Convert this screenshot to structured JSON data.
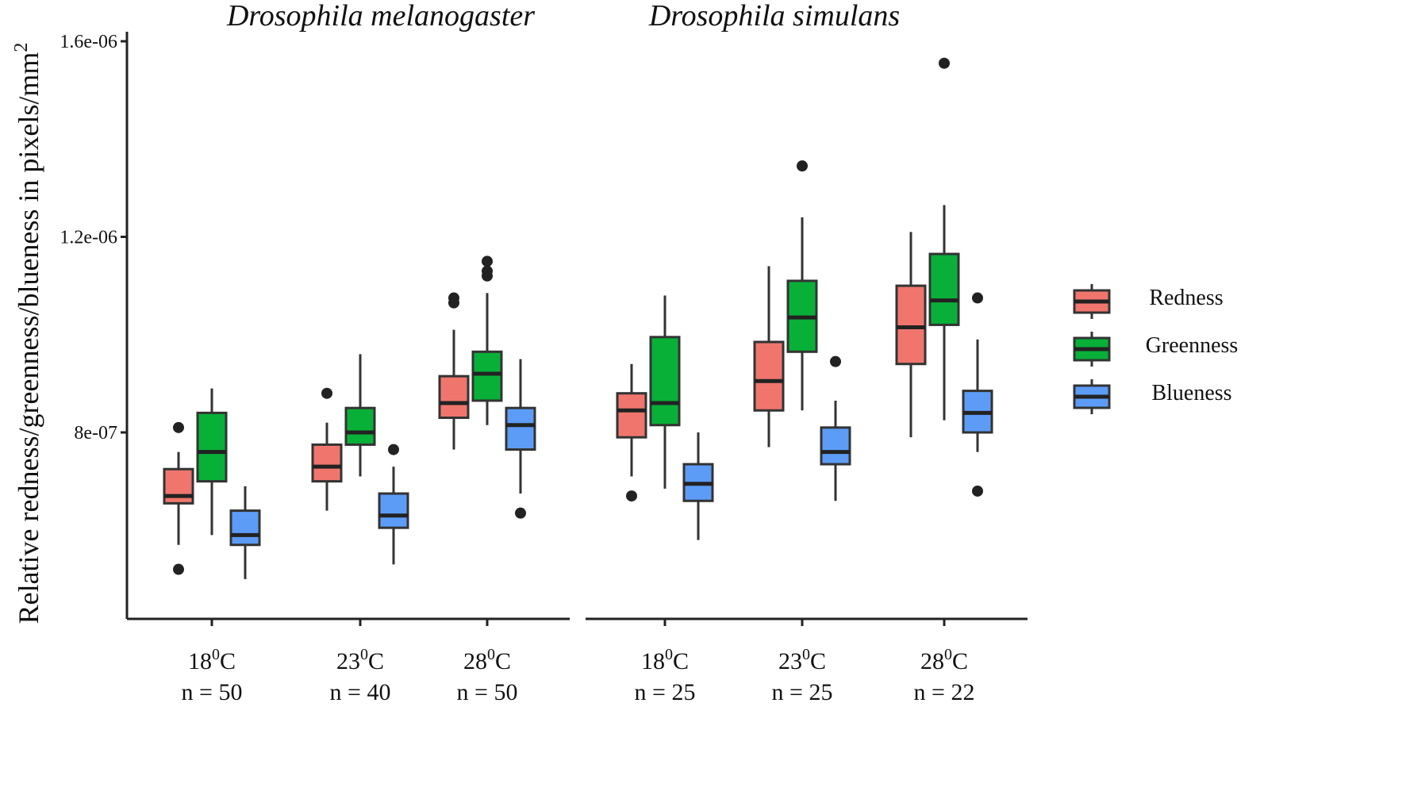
{
  "chart_data": {
    "type": "boxplot",
    "ylabel": "Relative redness/greenness/blueness in pixels/mm",
    "ylabel_superscript": "2",
    "ylim": [
      4e-07,
      1.6e-06
    ],
    "y_ticks": [
      {
        "value": 8e-07,
        "label": "8e-07"
      },
      {
        "value": 1.2e-06,
        "label": "1.2e-06"
      },
      {
        "value": 1.6e-06,
        "label": "1.6e-06"
      }
    ],
    "legend": [
      {
        "name": "Redness",
        "color": "#F0766D"
      },
      {
        "name": "Greenness",
        "color": "#08B038"
      },
      {
        "name": "Blueness",
        "color": "#5C9CF7"
      }
    ],
    "panels": [
      {
        "title": "Drosophila melanogaster",
        "groups": [
          {
            "temp": "18",
            "sup": "0",
            "unit": "C",
            "n_label": "n = 50",
            "boxes": [
              {
                "series": "Redness",
                "min": 5.7e-07,
                "q1": 6.55e-07,
                "median": 6.7e-07,
                "q3": 7.25e-07,
                "max": 7.6e-07,
                "outliers": [
                  8.1e-07,
                  5.2e-07
                ]
              },
              {
                "series": "Greenness",
                "min": 5.9e-07,
                "q1": 7e-07,
                "median": 7.6e-07,
                "q3": 8.4e-07,
                "max": 8.9e-07,
                "outliers": []
              },
              {
                "series": "Blueness",
                "min": 5e-07,
                "q1": 5.7e-07,
                "median": 5.9e-07,
                "q3": 6.4e-07,
                "max": 6.9e-07,
                "outliers": []
              }
            ]
          },
          {
            "temp": "23",
            "sup": "0",
            "unit": "C",
            "n_label": "n = 40",
            "boxes": [
              {
                "series": "Redness",
                "min": 6.4e-07,
                "q1": 7e-07,
                "median": 7.3e-07,
                "q3": 7.75e-07,
                "max": 8.2e-07,
                "outliers": [
                  8.8e-07
                ]
              },
              {
                "series": "Greenness",
                "min": 7.1e-07,
                "q1": 7.75e-07,
                "median": 8e-07,
                "q3": 8.5e-07,
                "max": 9.6e-07,
                "outliers": []
              },
              {
                "series": "Blueness",
                "min": 5.3e-07,
                "q1": 6.05e-07,
                "median": 6.3e-07,
                "q3": 6.75e-07,
                "max": 7.3e-07,
                "outliers": [
                  7.65e-07
                ]
              }
            ]
          },
          {
            "temp": "28",
            "sup": "0",
            "unit": "C",
            "n_label": "n = 50",
            "boxes": [
              {
                "series": "Redness",
                "min": 7.65e-07,
                "q1": 8.3e-07,
                "median": 8.6e-07,
                "q3": 9.15e-07,
                "max": 1.01e-06,
                "outliers": [
                  1.065e-06,
                  1.075e-06
                ]
              },
              {
                "series": "Greenness",
                "min": 8.15e-07,
                "q1": 8.65e-07,
                "median": 9.2e-07,
                "q3": 9.65e-07,
                "max": 1.085e-06,
                "outliers": [
                  1.12e-06,
                  1.13e-06,
                  1.15e-06
                ]
              },
              {
                "series": "Blueness",
                "min": 6.75e-07,
                "q1": 7.65e-07,
                "median": 8.15e-07,
                "q3": 8.5e-07,
                "max": 9.5e-07,
                "outliers": [
                  6.35e-07
                ]
              }
            ]
          }
        ]
      },
      {
        "title": "Drosophila simulans",
        "groups": [
          {
            "temp": "18",
            "sup": "0",
            "unit": "C",
            "n_label": "n = 25",
            "boxes": [
              {
                "series": "Redness",
                "min": 7.1e-07,
                "q1": 7.9e-07,
                "median": 8.45e-07,
                "q3": 8.8e-07,
                "max": 9.4e-07,
                "outliers": [
                  6.7e-07
                ]
              },
              {
                "series": "Greenness",
                "min": 6.85e-07,
                "q1": 8.15e-07,
                "median": 8.6e-07,
                "q3": 9.95e-07,
                "max": 1.08e-06,
                "outliers": []
              },
              {
                "series": "Blueness",
                "min": 5.8e-07,
                "q1": 6.6e-07,
                "median": 6.95e-07,
                "q3": 7.35e-07,
                "max": 8e-07,
                "outliers": []
              }
            ]
          },
          {
            "temp": "23",
            "sup": "0",
            "unit": "C",
            "n_label": "n = 25",
            "boxes": [
              {
                "series": "Redness",
                "min": 7.7e-07,
                "q1": 8.45e-07,
                "median": 9.05e-07,
                "q3": 9.85e-07,
                "max": 1.14e-06,
                "outliers": []
              },
              {
                "series": "Greenness",
                "min": 8.45e-07,
                "q1": 9.65e-07,
                "median": 1.035e-06,
                "q3": 1.11e-06,
                "max": 1.24e-06,
                "outliers": [
                  1.345e-06
                ]
              },
              {
                "series": "Blueness",
                "min": 6.6e-07,
                "q1": 7.35e-07,
                "median": 7.6e-07,
                "q3": 8.1e-07,
                "max": 8.65e-07,
                "outliers": [
                  9.45e-07
                ]
              }
            ]
          },
          {
            "temp": "28",
            "sup": "0",
            "unit": "C",
            "n_label": "n = 22",
            "boxes": [
              {
                "series": "Redness",
                "min": 7.9e-07,
                "q1": 9.4e-07,
                "median": 1.015e-06,
                "q3": 1.1e-06,
                "max": 1.21e-06,
                "outliers": []
              },
              {
                "series": "Greenness",
                "min": 8.25e-07,
                "q1": 1.02e-06,
                "median": 1.07e-06,
                "q3": 1.165e-06,
                "max": 1.265e-06,
                "outliers": [
                  1.555e-06
                ]
              },
              {
                "series": "Blueness",
                "min": 7.6e-07,
                "q1": 8e-07,
                "median": 8.4e-07,
                "q3": 8.85e-07,
                "max": 9.9e-07,
                "outliers": [
                  1.075e-06,
                  6.8e-07
                ]
              }
            ]
          }
        ]
      }
    ]
  }
}
